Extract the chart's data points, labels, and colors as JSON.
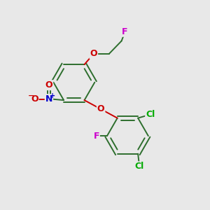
{
  "bg_color": "#e8e8e8",
  "bond_color": "#2d6e2d",
  "atom_colors": {
    "O": "#cc0000",
    "N": "#0000cc",
    "F": "#cc00cc",
    "Cl": "#00aa00",
    "minus": "#cc0000",
    "plus": "#0000cc"
  },
  "figsize": [
    3.0,
    3.0
  ],
  "dpi": 100,
  "lw": 1.4,
  "r": 1.0
}
